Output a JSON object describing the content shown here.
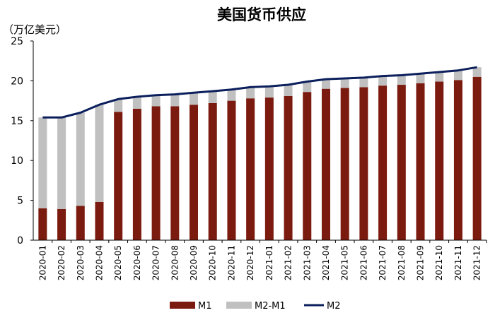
{
  "chart_data": {
    "type": "bar",
    "title": "美国货币供应",
    "ylabel": "（万亿美元）",
    "xlabel": "",
    "ylim": [
      0,
      25
    ],
    "yticks": [
      0,
      5,
      10,
      15,
      20,
      25
    ],
    "categories": [
      "2020-01",
      "2020-02",
      "2020-03",
      "2020-04",
      "2020-05",
      "2020-06",
      "2020-07",
      "2020-08",
      "2020-09",
      "2020-10",
      "2020-11",
      "2020-12",
      "2021-01",
      "2021-02",
      "2021-03",
      "2021-04",
      "2021-05",
      "2021-06",
      "2021-07",
      "2021-08",
      "2021-09",
      "2021-10",
      "2021-11",
      "2021-12"
    ],
    "series": [
      {
        "name": "M1",
        "kind": "bar-stacked",
        "color": "#7b1a0e",
        "values": [
          4.0,
          3.9,
          4.3,
          4.8,
          16.1,
          16.5,
          16.8,
          16.8,
          17.0,
          17.2,
          17.5,
          17.8,
          17.9,
          18.1,
          18.6,
          19.0,
          19.1,
          19.2,
          19.4,
          19.5,
          19.7,
          19.9,
          20.1,
          20.5
        ]
      },
      {
        "name": "M2-M1",
        "kind": "bar-stacked",
        "color": "#c0c0c0",
        "values": [
          11.4,
          11.5,
          11.7,
          12.2,
          1.6,
          1.5,
          1.4,
          1.5,
          1.5,
          1.5,
          1.4,
          1.4,
          1.4,
          1.4,
          1.3,
          1.2,
          1.2,
          1.2,
          1.2,
          1.2,
          1.2,
          1.2,
          1.2,
          1.2
        ]
      },
      {
        "name": "M2",
        "kind": "line",
        "color": "#0b1f5c",
        "values": [
          15.4,
          15.4,
          16.0,
          17.0,
          17.7,
          18.0,
          18.2,
          18.3,
          18.5,
          18.7,
          18.9,
          19.2,
          19.3,
          19.5,
          19.9,
          20.2,
          20.3,
          20.4,
          20.6,
          20.7,
          20.9,
          21.1,
          21.3,
          21.7
        ]
      }
    ],
    "legend": {
      "position": "bottom",
      "entries": [
        "M1",
        "M2-M1",
        "M2"
      ]
    },
    "grid": false
  }
}
